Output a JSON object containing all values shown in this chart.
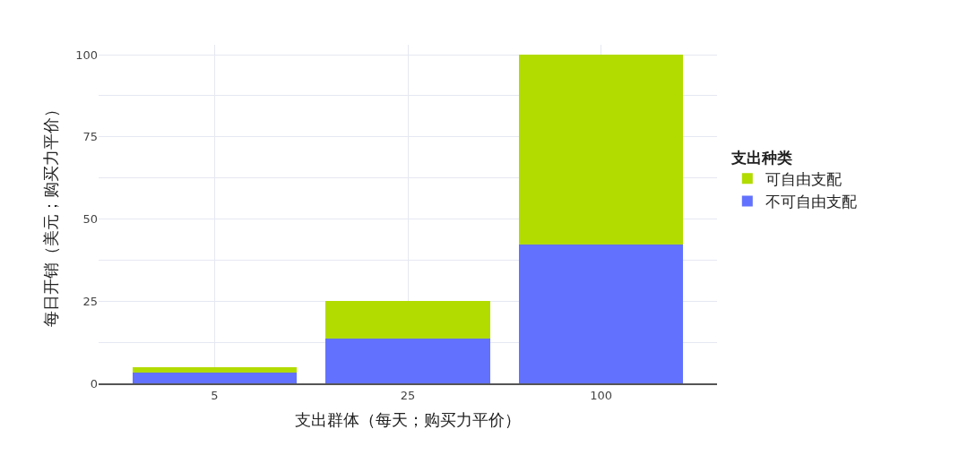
{
  "chart_data": {
    "type": "bar",
    "stacked": true,
    "xlabel": "支出群体（每天；购买力平价）",
    "ylabel": "每日开销（美元；购买力平价）",
    "legend_title": "支出种类",
    "legend": "right",
    "categories": [
      "5",
      "25",
      "100"
    ],
    "series": [
      {
        "name": "不可自由支配",
        "color": "#6272fe",
        "values": [
          3.4,
          13.5,
          42.3
        ]
      },
      {
        "name": "可自由支配",
        "color": "#b2db00",
        "values": [
          1.6,
          11.5,
          57.7
        ]
      }
    ],
    "ylim": [
      0,
      103
    ],
    "yticks": [
      0,
      {
        "value": 12.5,
        "label": null
      },
      25,
      {
        "value": 37.5,
        "label": null
      },
      50,
      {
        "value": 62.5,
        "label": null
      },
      75,
      {
        "value": 87.5,
        "label": null
      },
      100
    ],
    "grid": true
  }
}
